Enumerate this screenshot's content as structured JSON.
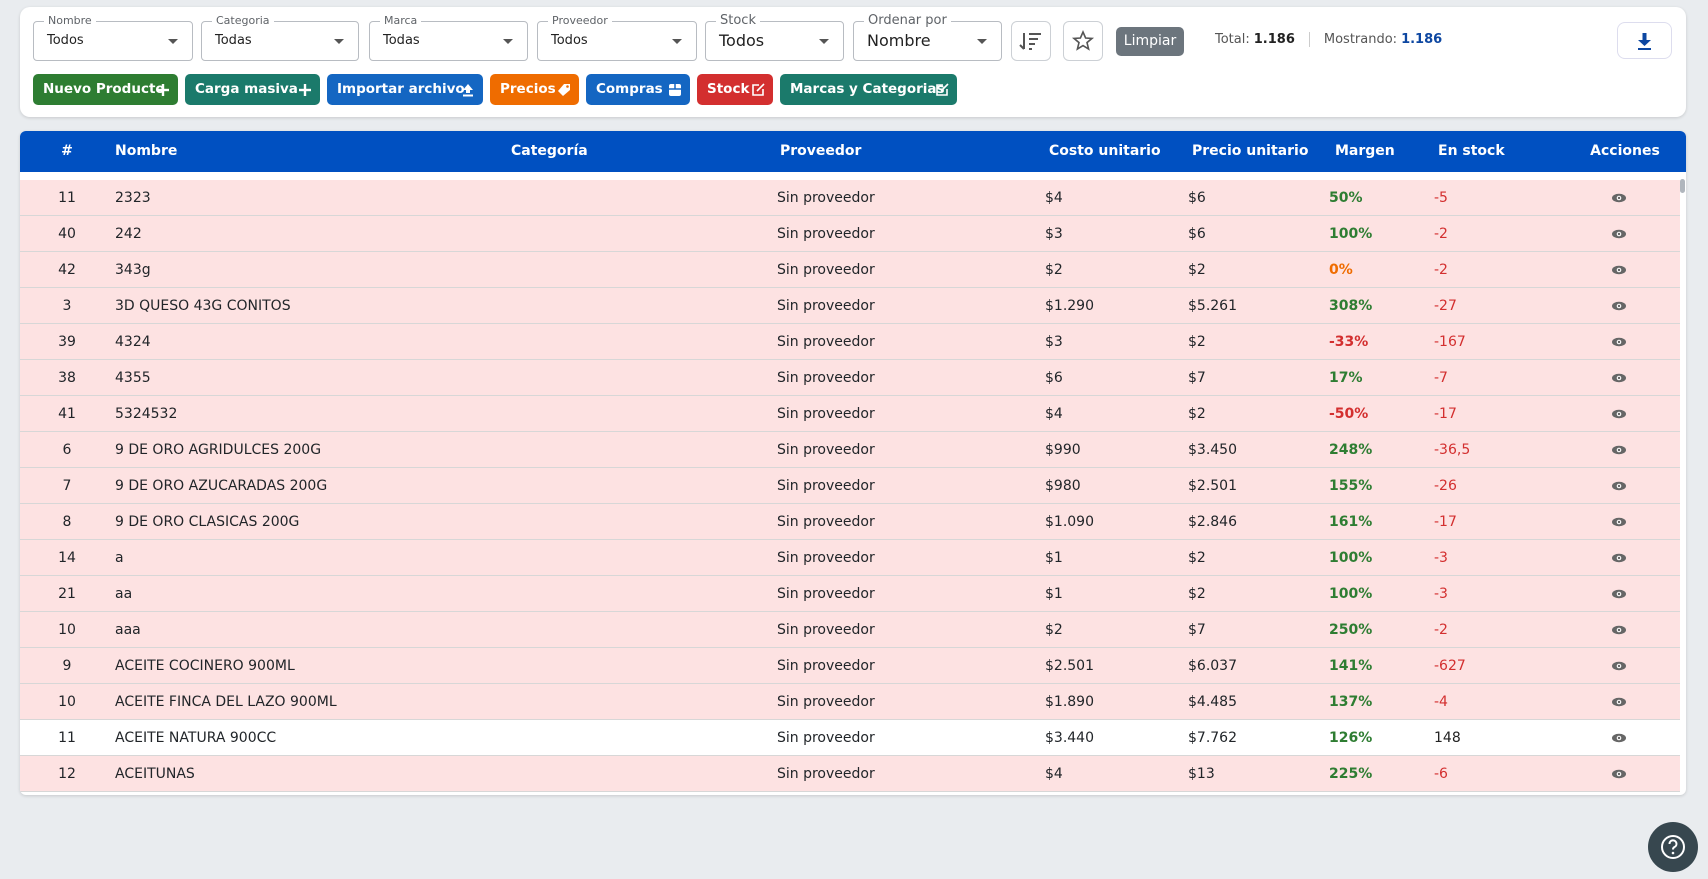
{
  "filters": [
    {
      "label": "Nombre",
      "value": "Todos"
    },
    {
      "label": "Categoria",
      "value": "Todas"
    },
    {
      "label": "Marca",
      "value": "Todas"
    },
    {
      "label": "Proveedor",
      "value": "Todos"
    },
    {
      "label": "Stock",
      "value": "Todos"
    },
    {
      "label": "Ordenar por",
      "value": "Nombre"
    }
  ],
  "toolbar": {
    "clear": "Limpiar",
    "total_label": "Total:",
    "total": "1.186",
    "showing_label": "Mostrando:",
    "showing": "1.186"
  },
  "buttons": [
    "Nuevo Producto",
    "Carga masiva",
    "Importar archivo",
    "Precios",
    "Compras",
    "Stock",
    "Marcas y Categorias"
  ],
  "table": {
    "headers": [
      "#",
      "Nombre",
      "Categoría",
      "Proveedor",
      "Costo unitario",
      "Precio unitario",
      "Margen",
      "En stock",
      "Acciones"
    ],
    "rows": [
      [
        "11",
        "2323",
        "Sin proveedor",
        "$4",
        "$6",
        "50%",
        "-5"
      ],
      [
        "40",
        "242",
        "Sin proveedor",
        "$3",
        "$6",
        "100%",
        "-2"
      ],
      [
        "42",
        "343g",
        "Sin proveedor",
        "$2",
        "$2",
        "0%",
        "-2"
      ],
      [
        "3",
        "3D QUESO 43G CONITOS",
        "Sin proveedor",
        "$1.290",
        "$5.261",
        "308%",
        "-27"
      ],
      [
        "39",
        "4324",
        "Sin proveedor",
        "$3",
        "$2",
        "-33%",
        "-167"
      ],
      [
        "38",
        "4355",
        "Sin proveedor",
        "$6",
        "$7",
        "17%",
        "-7"
      ],
      [
        "41",
        "5324532",
        "Sin proveedor",
        "$4",
        "$2",
        "-50%",
        "-17"
      ],
      [
        "6",
        "9 DE ORO AGRIDULCES 200G",
        "Sin proveedor",
        "$990",
        "$3.450",
        "248%",
        "-36,5"
      ],
      [
        "7",
        "9 DE ORO AZUCARADAS 200G",
        "Sin proveedor",
        "$980",
        "$2.501",
        "155%",
        "-26"
      ],
      [
        "8",
        "9 DE ORO CLASICAS 200G",
        "Sin proveedor",
        "$1.090",
        "$2.846",
        "161%",
        "-17"
      ],
      [
        "14",
        "a",
        "Sin proveedor",
        "$1",
        "$2",
        "100%",
        "-3"
      ],
      [
        "21",
        "aa",
        "Sin proveedor",
        "$1",
        "$2",
        "100%",
        "-3"
      ],
      [
        "10",
        "aaa",
        "Sin proveedor",
        "$2",
        "$7",
        "250%",
        "-2"
      ],
      [
        "9",
        "ACEITE COCINERO 900ML",
        "Sin proveedor",
        "$2.501",
        "$6.037",
        "141%",
        "-627"
      ],
      [
        "10",
        "ACEITE FINCA DEL LAZO 900ML",
        "Sin proveedor",
        "$1.890",
        "$4.485",
        "137%",
        "-4"
      ],
      [
        "11",
        "ACEITE NATURA 900CC",
        "Sin proveedor",
        "$3.440",
        "$7.762",
        "126%",
        "148"
      ],
      [
        "12",
        "ACEITUNAS",
        "Sin proveedor",
        "$4",
        "$13",
        "225%",
        "-6"
      ]
    ]
  }
}
